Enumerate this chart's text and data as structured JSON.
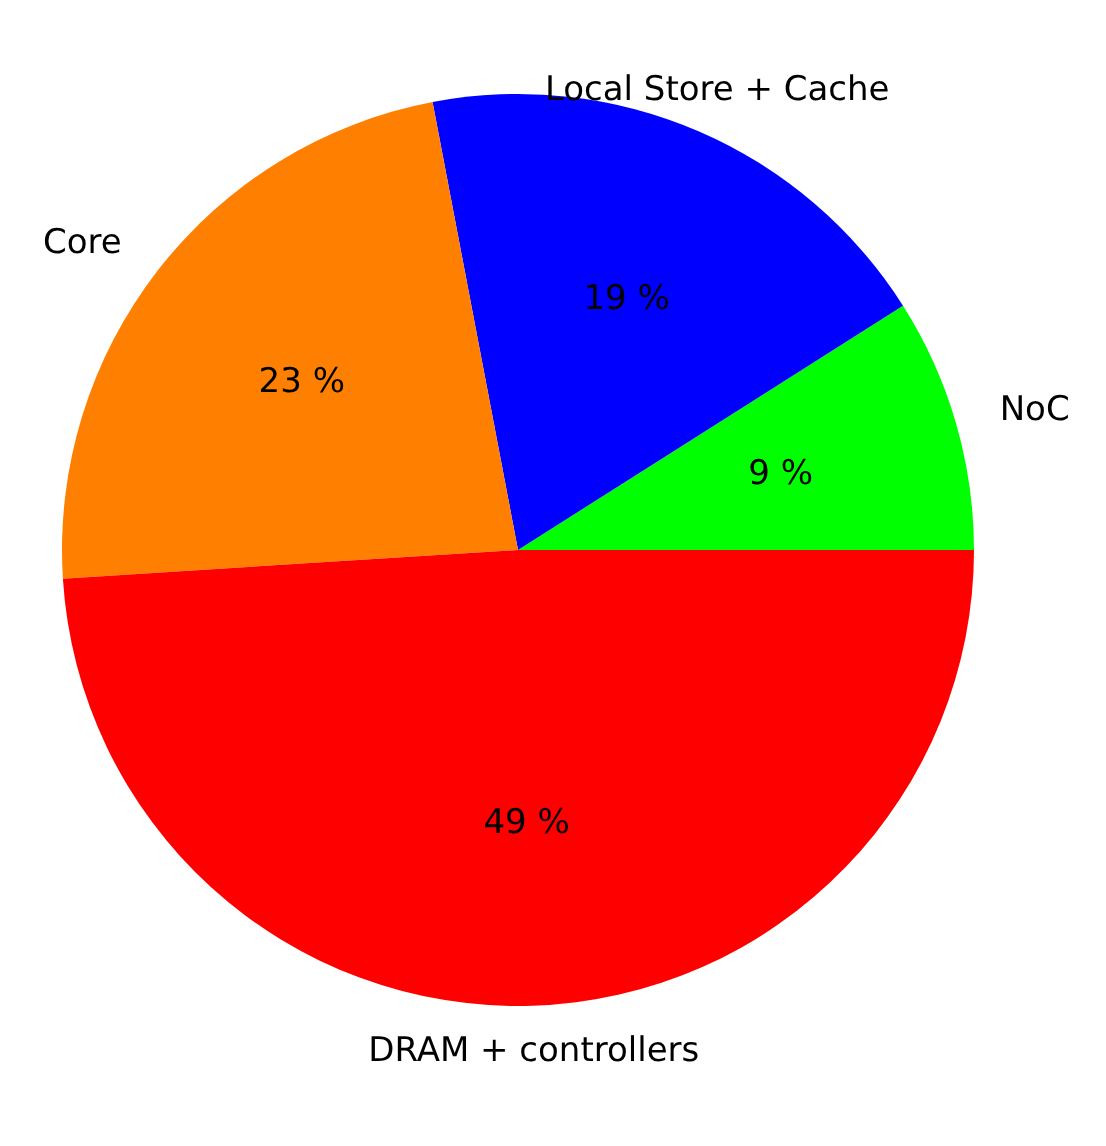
{
  "chart_data": {
    "type": "pie",
    "categories": [
      "NoC",
      "Local Store + Cache",
      "Core",
      "DRAM + controllers"
    ],
    "values": [
      9,
      19,
      23,
      49
    ],
    "colors": [
      "#00ff00",
      "#0000ff",
      "#ff8000",
      "#ff0000"
    ],
    "value_labels": [
      "9 %",
      "19 %",
      "23 %",
      "49 %"
    ]
  }
}
